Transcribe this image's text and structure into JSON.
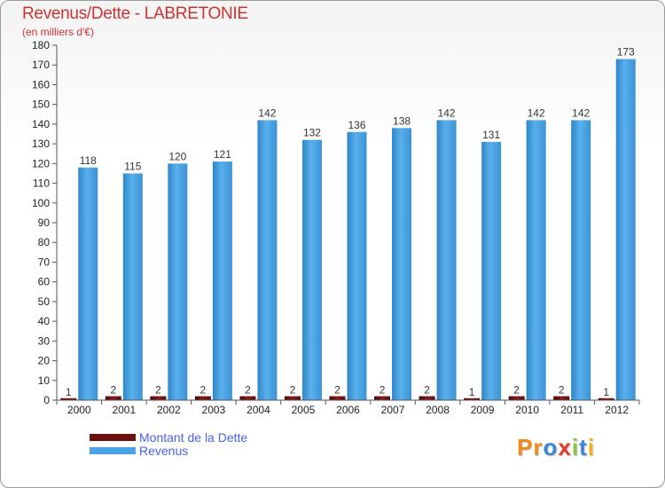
{
  "title": "Revenus/Dette - LABRETONIE",
  "subtitle": "(en milliers d'€)",
  "chart_data": {
    "type": "bar",
    "categories": [
      "2000",
      "2001",
      "2002",
      "2003",
      "2004",
      "2005",
      "2006",
      "2007",
      "2008",
      "2009",
      "2010",
      "2011",
      "2012"
    ],
    "series": [
      {
        "name": "Montant de la Dette",
        "color": "#6b0f0f",
        "values": [
          1,
          2,
          2,
          2,
          2,
          2,
          2,
          2,
          2,
          1,
          2,
          2,
          1
        ]
      },
      {
        "name": "Revenus",
        "color": "#4aa3e3",
        "values": [
          118,
          115,
          120,
          121,
          142,
          132,
          136,
          138,
          142,
          131,
          142,
          142,
          173
        ]
      }
    ],
    "ylim": [
      0,
      180
    ],
    "ytick_step": 10,
    "grid": false,
    "legend": "bottom-left"
  },
  "legend": {
    "dette_label": "Montant de la Dette",
    "revenus_label": "Revenus"
  },
  "logo": {
    "text": "Proxiti",
    "letters": [
      "P",
      "r",
      "o",
      "x",
      "i",
      "t",
      "i"
    ],
    "colors": [
      "#f08a1c",
      "#f08a1c",
      "#3a86d8",
      "#e23b2a",
      "#8bc43f",
      "#3a86d8",
      "#f0b21c"
    ]
  }
}
